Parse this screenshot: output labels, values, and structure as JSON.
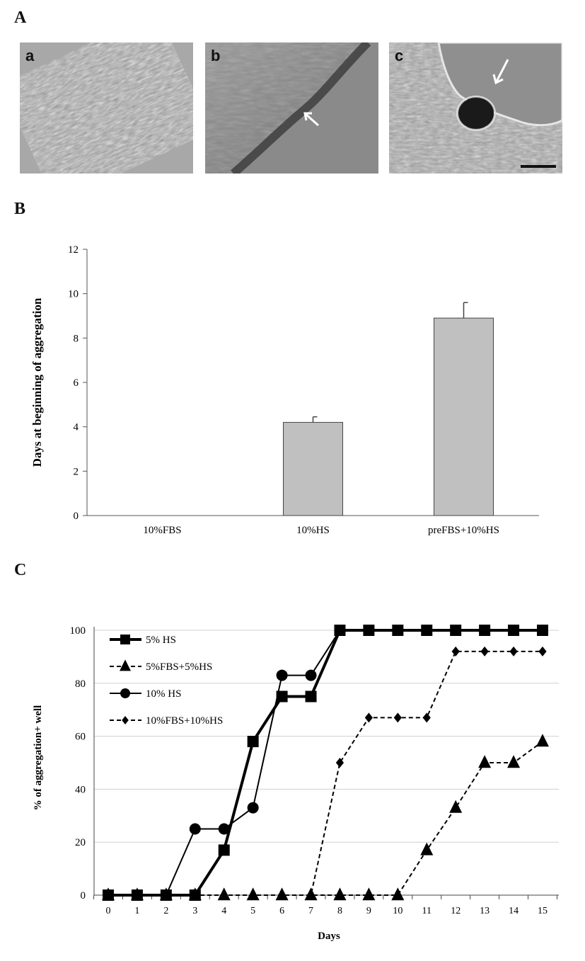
{
  "panels": {
    "A": "A",
    "B": "B",
    "C": "C"
  },
  "micrographs": [
    {
      "label": "a"
    },
    {
      "label": "b"
    },
    {
      "label": "c"
    }
  ],
  "chart_data": [
    {
      "type": "bar",
      "ylabel": "Days at beginning of aggregation",
      "categories": [
        "10%FBS",
        "10%HS",
        "preFBS+10%HS"
      ],
      "values": [
        0,
        4.2,
        8.9
      ],
      "errors": [
        0,
        0.25,
        0.7
      ],
      "ylim": [
        0,
        12
      ],
      "yticks": [
        0,
        2,
        4,
        6,
        8,
        10,
        12
      ],
      "grid": false,
      "bar_color": "#c0c0c0"
    },
    {
      "type": "line",
      "xlabel": "Days",
      "ylabel": "% of aggregation+ well",
      "x": [
        0,
        1,
        2,
        3,
        4,
        5,
        6,
        7,
        8,
        9,
        10,
        11,
        12,
        13,
        14,
        15
      ],
      "ylim": [
        0,
        100
      ],
      "yticks": [
        0,
        20,
        40,
        60,
        80,
        100
      ],
      "grid": true,
      "legend_position": "top-left",
      "series": [
        {
          "name": "5% HS",
          "marker": "square",
          "dash": false,
          "width": 4,
          "values": [
            0,
            0,
            0,
            0,
            17,
            58,
            75,
            75,
            100,
            100,
            100,
            100,
            100,
            100,
            100,
            100
          ]
        },
        {
          "name": "5%FBS+5%HS",
          "marker": "triangle",
          "dash": true,
          "width": 2,
          "values": [
            0,
            0,
            0,
            0,
            0,
            0,
            0,
            0,
            0,
            0,
            0,
            17,
            33,
            50,
            50,
            58
          ]
        },
        {
          "name": "10% HS",
          "marker": "circle",
          "dash": false,
          "width": 2,
          "values": [
            0,
            0,
            0,
            25,
            25,
            33,
            83,
            83,
            100,
            100,
            100,
            100,
            100,
            100,
            100,
            100
          ]
        },
        {
          "name": "10%FBS+10%HS",
          "marker": "diamond",
          "dash": true,
          "width": 2,
          "values": [
            0,
            0,
            0,
            0,
            0,
            0,
            0,
            0,
            50,
            67,
            67,
            67,
            92,
            92,
            92,
            92
          ]
        }
      ]
    }
  ]
}
